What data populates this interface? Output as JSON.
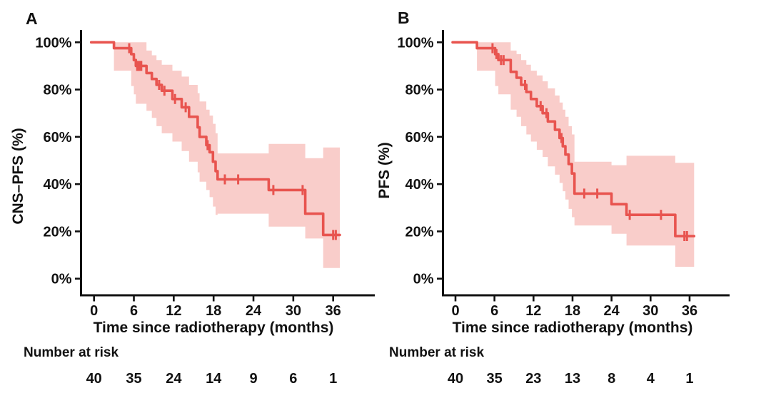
{
  "figure": {
    "background": "#ffffff"
  },
  "colors": {
    "curve": "#e8544f",
    "band": "#f9cdca",
    "axis": "#111111",
    "text": "#111111"
  },
  "chart_data": [
    {
      "type": "line",
      "subtype": "kaplan-meier-step",
      "panel_label": "A",
      "ylabel": "CNS–PFS (%)",
      "xlabel": "Time since radiotherapy (months)",
      "risk_label": "Number at risk",
      "xlim": [
        0,
        42
      ],
      "ylim": [
        0,
        100
      ],
      "x_ticks": [
        0,
        6,
        12,
        18,
        24,
        30,
        36
      ],
      "x_tick_labels": [
        "0",
        "6",
        "12",
        "18",
        "24",
        "30",
        "36"
      ],
      "y_ticks": [
        0,
        20,
        40,
        60,
        80,
        100
      ],
      "y_tick_labels": [
        "0%",
        "20%",
        "40%",
        "60%",
        "80%",
        "100%"
      ],
      "km_steps": [
        [
          0,
          100
        ],
        [
          3.0,
          97.5
        ],
        [
          5.6,
          95
        ],
        [
          6.0,
          92.5
        ],
        [
          6.3,
          90
        ],
        [
          7.9,
          87
        ],
        [
          8.7,
          84.5
        ],
        [
          9.4,
          82
        ],
        [
          10.2,
          79.5
        ],
        [
          11.8,
          76
        ],
        [
          13.2,
          72.5
        ],
        [
          14.3,
          68.5
        ],
        [
          15.6,
          64
        ],
        [
          15.9,
          60
        ],
        [
          16.9,
          56.5
        ],
        [
          17.4,
          53.5
        ],
        [
          17.9,
          49.5
        ],
        [
          18.3,
          45.5
        ],
        [
          18.6,
          42
        ],
        [
          26.3,
          37.5
        ],
        [
          31.8,
          27.5
        ],
        [
          34.5,
          18.5
        ]
      ],
      "t_end": 37.0,
      "censors": [
        [
          5.3,
          97.5
        ],
        [
          6.5,
          90
        ],
        [
          6.8,
          90
        ],
        [
          7.1,
          90
        ],
        [
          9.8,
          82
        ],
        [
          10.6,
          79.5
        ],
        [
          12.2,
          76
        ],
        [
          13.8,
          72.5
        ],
        [
          17.1,
          56.5
        ],
        [
          19.7,
          42
        ],
        [
          21.7,
          42
        ],
        [
          27.0,
          37.5
        ],
        [
          31.4,
          37.5
        ],
        [
          36.0,
          18.5
        ],
        [
          36.4,
          18.5
        ]
      ],
      "ci_steps": [
        [
          3.0,
          88,
          100
        ],
        [
          5.6,
          81.5,
          100
        ],
        [
          6.0,
          78,
          100
        ],
        [
          6.3,
          74,
          100
        ],
        [
          7.9,
          71,
          96.5
        ],
        [
          8.7,
          68,
          94.5
        ],
        [
          9.4,
          64.5,
          92.5
        ],
        [
          10.2,
          61.5,
          90.5
        ],
        [
          11.8,
          58,
          88
        ],
        [
          13.2,
          54,
          85.5
        ],
        [
          14.3,
          49.5,
          82
        ],
        [
          15.6,
          45,
          78.5
        ],
        [
          15.9,
          41,
          75
        ],
        [
          16.9,
          37.5,
          71.5
        ],
        [
          17.4,
          34.5,
          69
        ],
        [
          17.9,
          30.5,
          65.5
        ],
        [
          18.3,
          27,
          61.5
        ],
        [
          18.6,
          27.5,
          53
        ],
        [
          26.3,
          22,
          57
        ],
        [
          31.8,
          17,
          51
        ],
        [
          34.5,
          4.5,
          55.5
        ]
      ],
      "number_at_risk": {
        "times": [
          0,
          6,
          12,
          18,
          24,
          30,
          36
        ],
        "values": [
          "40",
          "35",
          "24",
          "14",
          "9",
          "6",
          "1"
        ]
      },
      "legend": "none",
      "grid": "off"
    },
    {
      "type": "line",
      "subtype": "kaplan-meier-step",
      "panel_label": "B",
      "ylabel": "PFS (%)",
      "xlabel": "Time since radiotherapy (months)",
      "risk_label": "Number at risk",
      "xlim": [
        0,
        42
      ],
      "ylim": [
        0,
        100
      ],
      "x_ticks": [
        0,
        6,
        12,
        18,
        24,
        30,
        36
      ],
      "x_tick_labels": [
        "0",
        "6",
        "12",
        "18",
        "24",
        "30",
        "36"
      ],
      "y_ticks": [
        0,
        20,
        40,
        60,
        80,
        100
      ],
      "y_tick_labels": [
        "0%",
        "20%",
        "40%",
        "60%",
        "80%",
        "100%"
      ],
      "km_steps": [
        [
          0,
          100
        ],
        [
          3.3,
          97.5
        ],
        [
          6.1,
          95
        ],
        [
          6.6,
          92.5
        ],
        [
          8.5,
          87.5
        ],
        [
          9.4,
          85
        ],
        [
          10.1,
          82
        ],
        [
          10.9,
          79
        ],
        [
          11.6,
          76
        ],
        [
          12.5,
          73
        ],
        [
          13.4,
          70
        ],
        [
          14.2,
          66.5
        ],
        [
          15.3,
          63
        ],
        [
          16.0,
          59.5
        ],
        [
          16.5,
          56
        ],
        [
          16.9,
          52.5
        ],
        [
          17.4,
          48.5
        ],
        [
          17.9,
          44.5
        ],
        [
          18.3,
          36
        ],
        [
          24.0,
          31.5
        ],
        [
          26.3,
          27
        ],
        [
          33.8,
          18
        ]
      ],
      "t_end": 36.7,
      "censors": [
        [
          5.7,
          97.5
        ],
        [
          6.3,
          95
        ],
        [
          7.0,
          92.5
        ],
        [
          7.4,
          92.5
        ],
        [
          10.7,
          82
        ],
        [
          13.1,
          73
        ],
        [
          14.0,
          70
        ],
        [
          16.3,
          59.5
        ],
        [
          19.8,
          36
        ],
        [
          21.8,
          36
        ],
        [
          26.8,
          27
        ],
        [
          31.6,
          27
        ],
        [
          35.2,
          18
        ],
        [
          35.6,
          18
        ]
      ],
      "ci_steps": [
        [
          3.3,
          88,
          100
        ],
        [
          6.1,
          81.5,
          100
        ],
        [
          6.6,
          78,
          100
        ],
        [
          8.5,
          71.5,
          96.5
        ],
        [
          9.4,
          68.5,
          95
        ],
        [
          10.1,
          64.5,
          92.5
        ],
        [
          10.9,
          61,
          90.5
        ],
        [
          11.6,
          58,
          88
        ],
        [
          12.5,
          54.5,
          86
        ],
        [
          13.4,
          51.5,
          83.5
        ],
        [
          14.2,
          47.5,
          80.5
        ],
        [
          15.3,
          44,
          77.5
        ],
        [
          16.0,
          40.5,
          74.5
        ],
        [
          16.5,
          37,
          71.5
        ],
        [
          16.9,
          33.5,
          68.5
        ],
        [
          17.4,
          29.5,
          64.5
        ],
        [
          17.9,
          26,
          61
        ],
        [
          18.3,
          22.5,
          49.5
        ],
        [
          24.0,
          19,
          48
        ],
        [
          26.3,
          14,
          52
        ],
        [
          33.8,
          5,
          49
        ]
      ],
      "number_at_risk": {
        "times": [
          0,
          6,
          12,
          18,
          24,
          30,
          36
        ],
        "values": [
          "40",
          "35",
          "23",
          "13",
          "8",
          "4",
          "1"
        ]
      },
      "legend": "none",
      "grid": "off"
    }
  ]
}
